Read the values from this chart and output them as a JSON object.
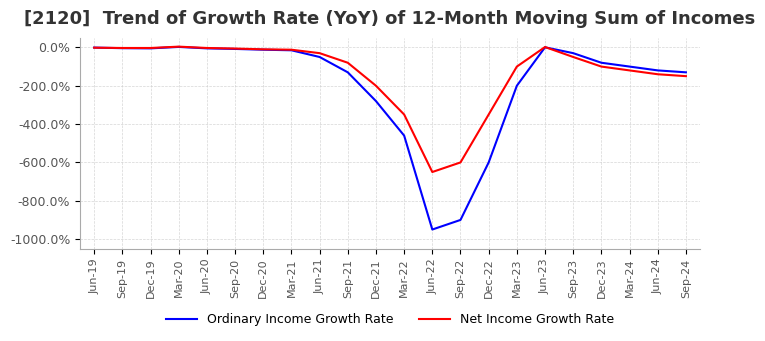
{
  "title": "[2120]  Trend of Growth Rate (YoY) of 12-Month Moving Sum of Incomes",
  "title_fontsize": 13,
  "title_color": "#333333",
  "background_color": "#ffffff",
  "grid_color": "#cccccc",
  "ylim": [
    -1050,
    50
  ],
  "yticks": [
    0,
    -200,
    -400,
    -600,
    -800,
    -1000
  ],
  "legend_labels": [
    "Ordinary Income Growth Rate",
    "Net Income Growth Rate"
  ],
  "line_colors": [
    "#0000ff",
    "#ff0000"
  ],
  "dates": [
    "Jun-19",
    "Sep-19",
    "Dec-19",
    "Mar-20",
    "Jun-20",
    "Sep-20",
    "Dec-20",
    "Mar-21",
    "Jun-21",
    "Sep-21",
    "Dec-21",
    "Mar-22",
    "Jun-22",
    "Sep-22",
    "Dec-22",
    "Mar-23",
    "Jun-23",
    "Sep-23",
    "Dec-23",
    "Mar-24",
    "Jun-24",
    "Sep-24"
  ],
  "ordinary_income_gr": [
    -1.0,
    -4.0,
    -5.0,
    2.5,
    -5.0,
    -8.0,
    -12.0,
    -15.0,
    -50.0,
    -130.0,
    -280.0,
    -460.0,
    -950.0,
    -900.0,
    -600.0,
    -200.0,
    0.5,
    -30.0,
    -80.0,
    -100.0,
    -120.0,
    -130.0
  ],
  "net_income_gr": [
    -1.5,
    -3.0,
    -3.0,
    4.0,
    -3.0,
    -6.0,
    -10.0,
    -12.0,
    -30.0,
    -80.0,
    -200.0,
    -350.0,
    -650.0,
    -600.0,
    -350.0,
    -100.0,
    2.0,
    -50.0,
    -100.0,
    -120.0,
    -140.0,
    -150.0
  ]
}
